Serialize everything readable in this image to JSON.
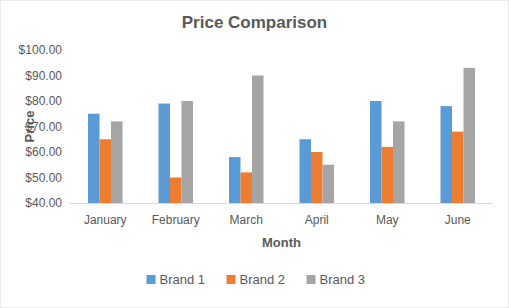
{
  "chart_data": {
    "type": "bar",
    "title": "Price Comparison",
    "x_label": "Month",
    "y_label": "Price",
    "categories": [
      "January",
      "February",
      "March",
      "April",
      "May",
      "June"
    ],
    "series": [
      {
        "name": "Brand 1",
        "color": "#5b9bd5",
        "values": [
          75,
          79,
          58,
          65,
          80,
          78
        ]
      },
      {
        "name": "Brand 2",
        "color": "#ed7d31",
        "values": [
          65,
          50,
          52,
          60,
          62,
          68
        ]
      },
      {
        "name": "Brand 3",
        "color": "#a5a5a5",
        "values": [
          72,
          80,
          90,
          55,
          72,
          93
        ]
      }
    ],
    "ylim": [
      40,
      100
    ],
    "yticks": [
      {
        "value": 40,
        "label": "$40.00"
      },
      {
        "value": 50,
        "label": "$50.00"
      },
      {
        "value": 60,
        "label": "$60.00"
      },
      {
        "value": 70,
        "label": "$70.00"
      },
      {
        "value": 80,
        "label": "$80.00"
      },
      {
        "value": 90,
        "label": "$90.00"
      },
      {
        "value": 100,
        "label": "$100.00"
      }
    ],
    "grid": false,
    "legend": "bottom"
  }
}
